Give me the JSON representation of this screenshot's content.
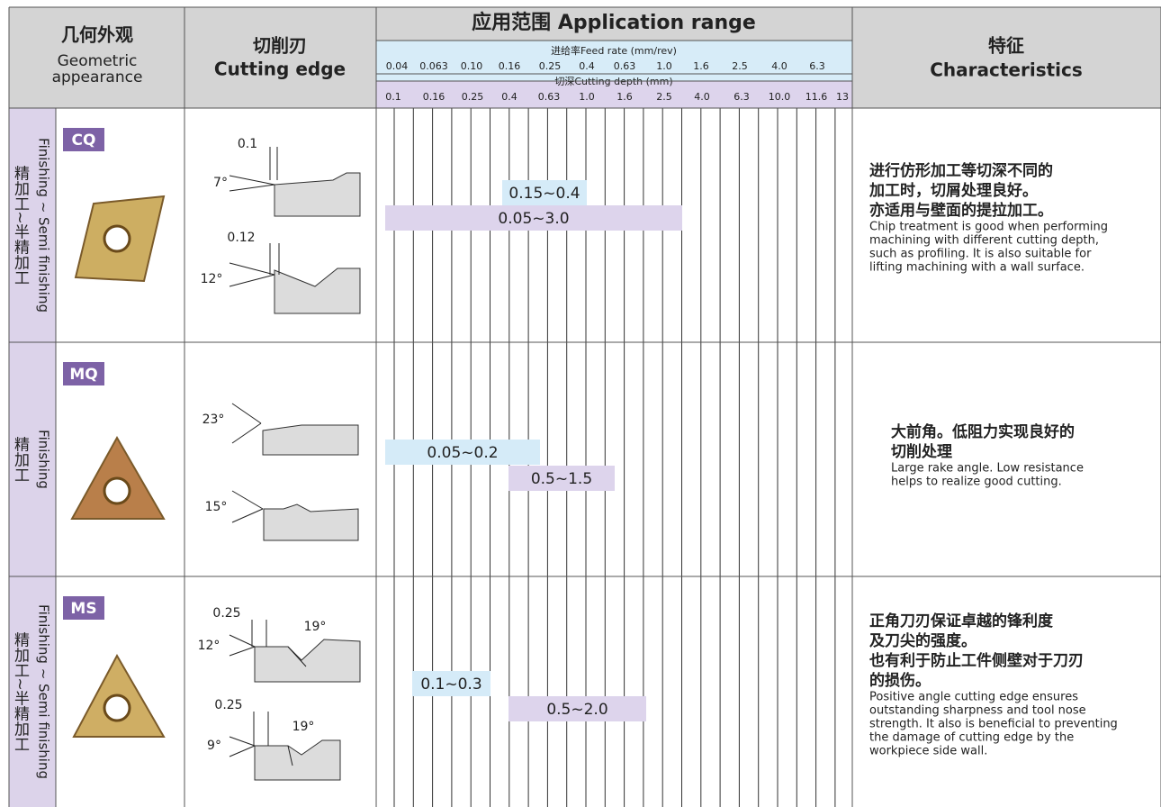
{
  "header": {
    "geometry_cn": "几何外观",
    "geometry_en_1": "Geometric",
    "geometry_en_2": "appearance",
    "edge_cn": "切削刃",
    "edge_en": "Cutting edge",
    "range_title": "应用范围 Application range",
    "feed_label": "进给率Feed rate (mm/rev)",
    "feed_ticks": [
      "0.04",
      "0.063",
      "0.10",
      "0.16",
      "0.25",
      "0.4",
      "0.63",
      "1.0",
      "1.6",
      "2.5",
      "4.0",
      "6.3"
    ],
    "depth_label": "切深Cutting depth (mm)",
    "depth_ticks": [
      "0.1",
      "0.16",
      "0.25",
      "0.4",
      "0.63",
      "1.0",
      "1.6",
      "2.5",
      "4.0",
      "6.3",
      "10.0",
      "11.6",
      "13"
    ],
    "char_cn": "特征",
    "char_en": "Characteristics"
  },
  "rows": [
    {
      "category_cn": "精加工~半精加工",
      "category_en": "Finishing ~ Semi finishing",
      "code": "CQ",
      "edge_labels": [
        "0.1",
        "7°",
        "0.12",
        "12°"
      ],
      "feed_range": "0.15~0.4",
      "depth_range": "0.05~3.0",
      "desc_cn": [
        "进行仿形加工等切深不同的",
        "加工时，切屑处理良好。",
        "亦适用与壁面的提拉加工。"
      ],
      "desc_en": [
        "Chip treatment is good when performing",
        "machining with different cutting depth,",
        "such as profiling. It is also suitable for",
        "lifting machining with a wall surface."
      ]
    },
    {
      "category_cn": "精加工",
      "category_en": "Finishing",
      "code": "MQ",
      "edge_labels": [
        "23°",
        "15°"
      ],
      "feed_range": "0.05~0.2",
      "depth_range": "0.5~1.5",
      "desc_cn": [
        "大前角。低阻力实现良好的",
        "切削处理"
      ],
      "desc_en": [
        "Large rake angle. Low resistance",
        "helps to realize good cutting."
      ]
    },
    {
      "category_cn": "精加工~半精加工",
      "category_en": "Finishing ~ Semi finishing",
      "code": "MS",
      "edge_labels": [
        "0.25",
        "12°",
        "19°",
        "0.25",
        "9°",
        "19°"
      ],
      "feed_range": "0.1~0.3",
      "depth_range": "0.5~2.0",
      "desc_cn": [
        "正角刀刃保证卓越的锋利度",
        "及刀尖的强度。",
        "也有利于防止工件侧壁对于刀刃",
        "的损伤。"
      ],
      "desc_en": [
        "Positive angle cutting edge ensures",
        "outstanding sharpness and tool nose",
        "strength. It also is beneficial to preventing",
        "the damage of cutting edge by the",
        "workpiece side wall."
      ]
    }
  ]
}
